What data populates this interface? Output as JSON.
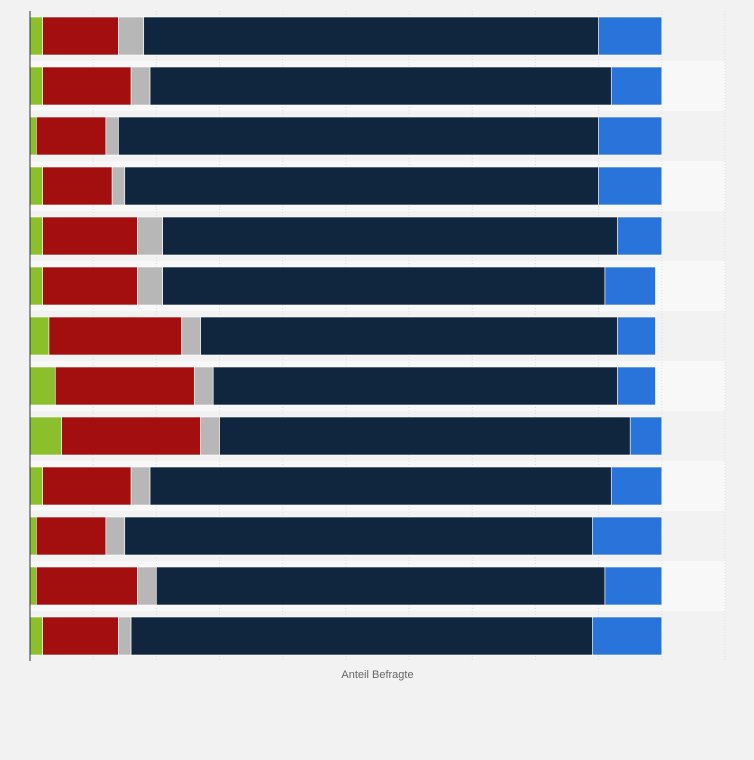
{
  "chart_data": {
    "type": "bar",
    "orientation": "horizontal",
    "stacked": true,
    "xlabel": "Anteil Befragte",
    "ylabel": "",
    "categories": [
      "",
      "",
      "",
      "",
      "",
      "",
      "",
      "",
      "",
      "",
      "",
      "",
      ""
    ],
    "xlim": [
      0,
      110
    ],
    "grid": true,
    "series": [
      {
        "name": "",
        "color": "#8bbf2b",
        "values": [
          2,
          2,
          1,
          2,
          2,
          2,
          3,
          4,
          5,
          2,
          1,
          1,
          2
        ]
      },
      {
        "name": "",
        "color": "#a30e0e",
        "values": [
          12,
          14,
          11,
          11,
          15,
          15,
          21,
          22,
          22,
          14,
          11,
          16,
          12
        ]
      },
      {
        "name": "",
        "color": "#b7b7b7",
        "values": [
          4,
          3,
          2,
          2,
          4,
          4,
          3,
          3,
          3,
          3,
          3,
          3,
          2
        ]
      },
      {
        "name": "",
        "color": "#10263e",
        "values": [
          72,
          73,
          76,
          75,
          72,
          70,
          66,
          64,
          65,
          73,
          74,
          71,
          73
        ]
      },
      {
        "name": "",
        "color": "#2874db",
        "values": [
          10,
          8,
          10,
          10,
          7,
          8,
          6,
          6,
          5,
          8,
          11,
          9,
          11
        ]
      }
    ]
  }
}
